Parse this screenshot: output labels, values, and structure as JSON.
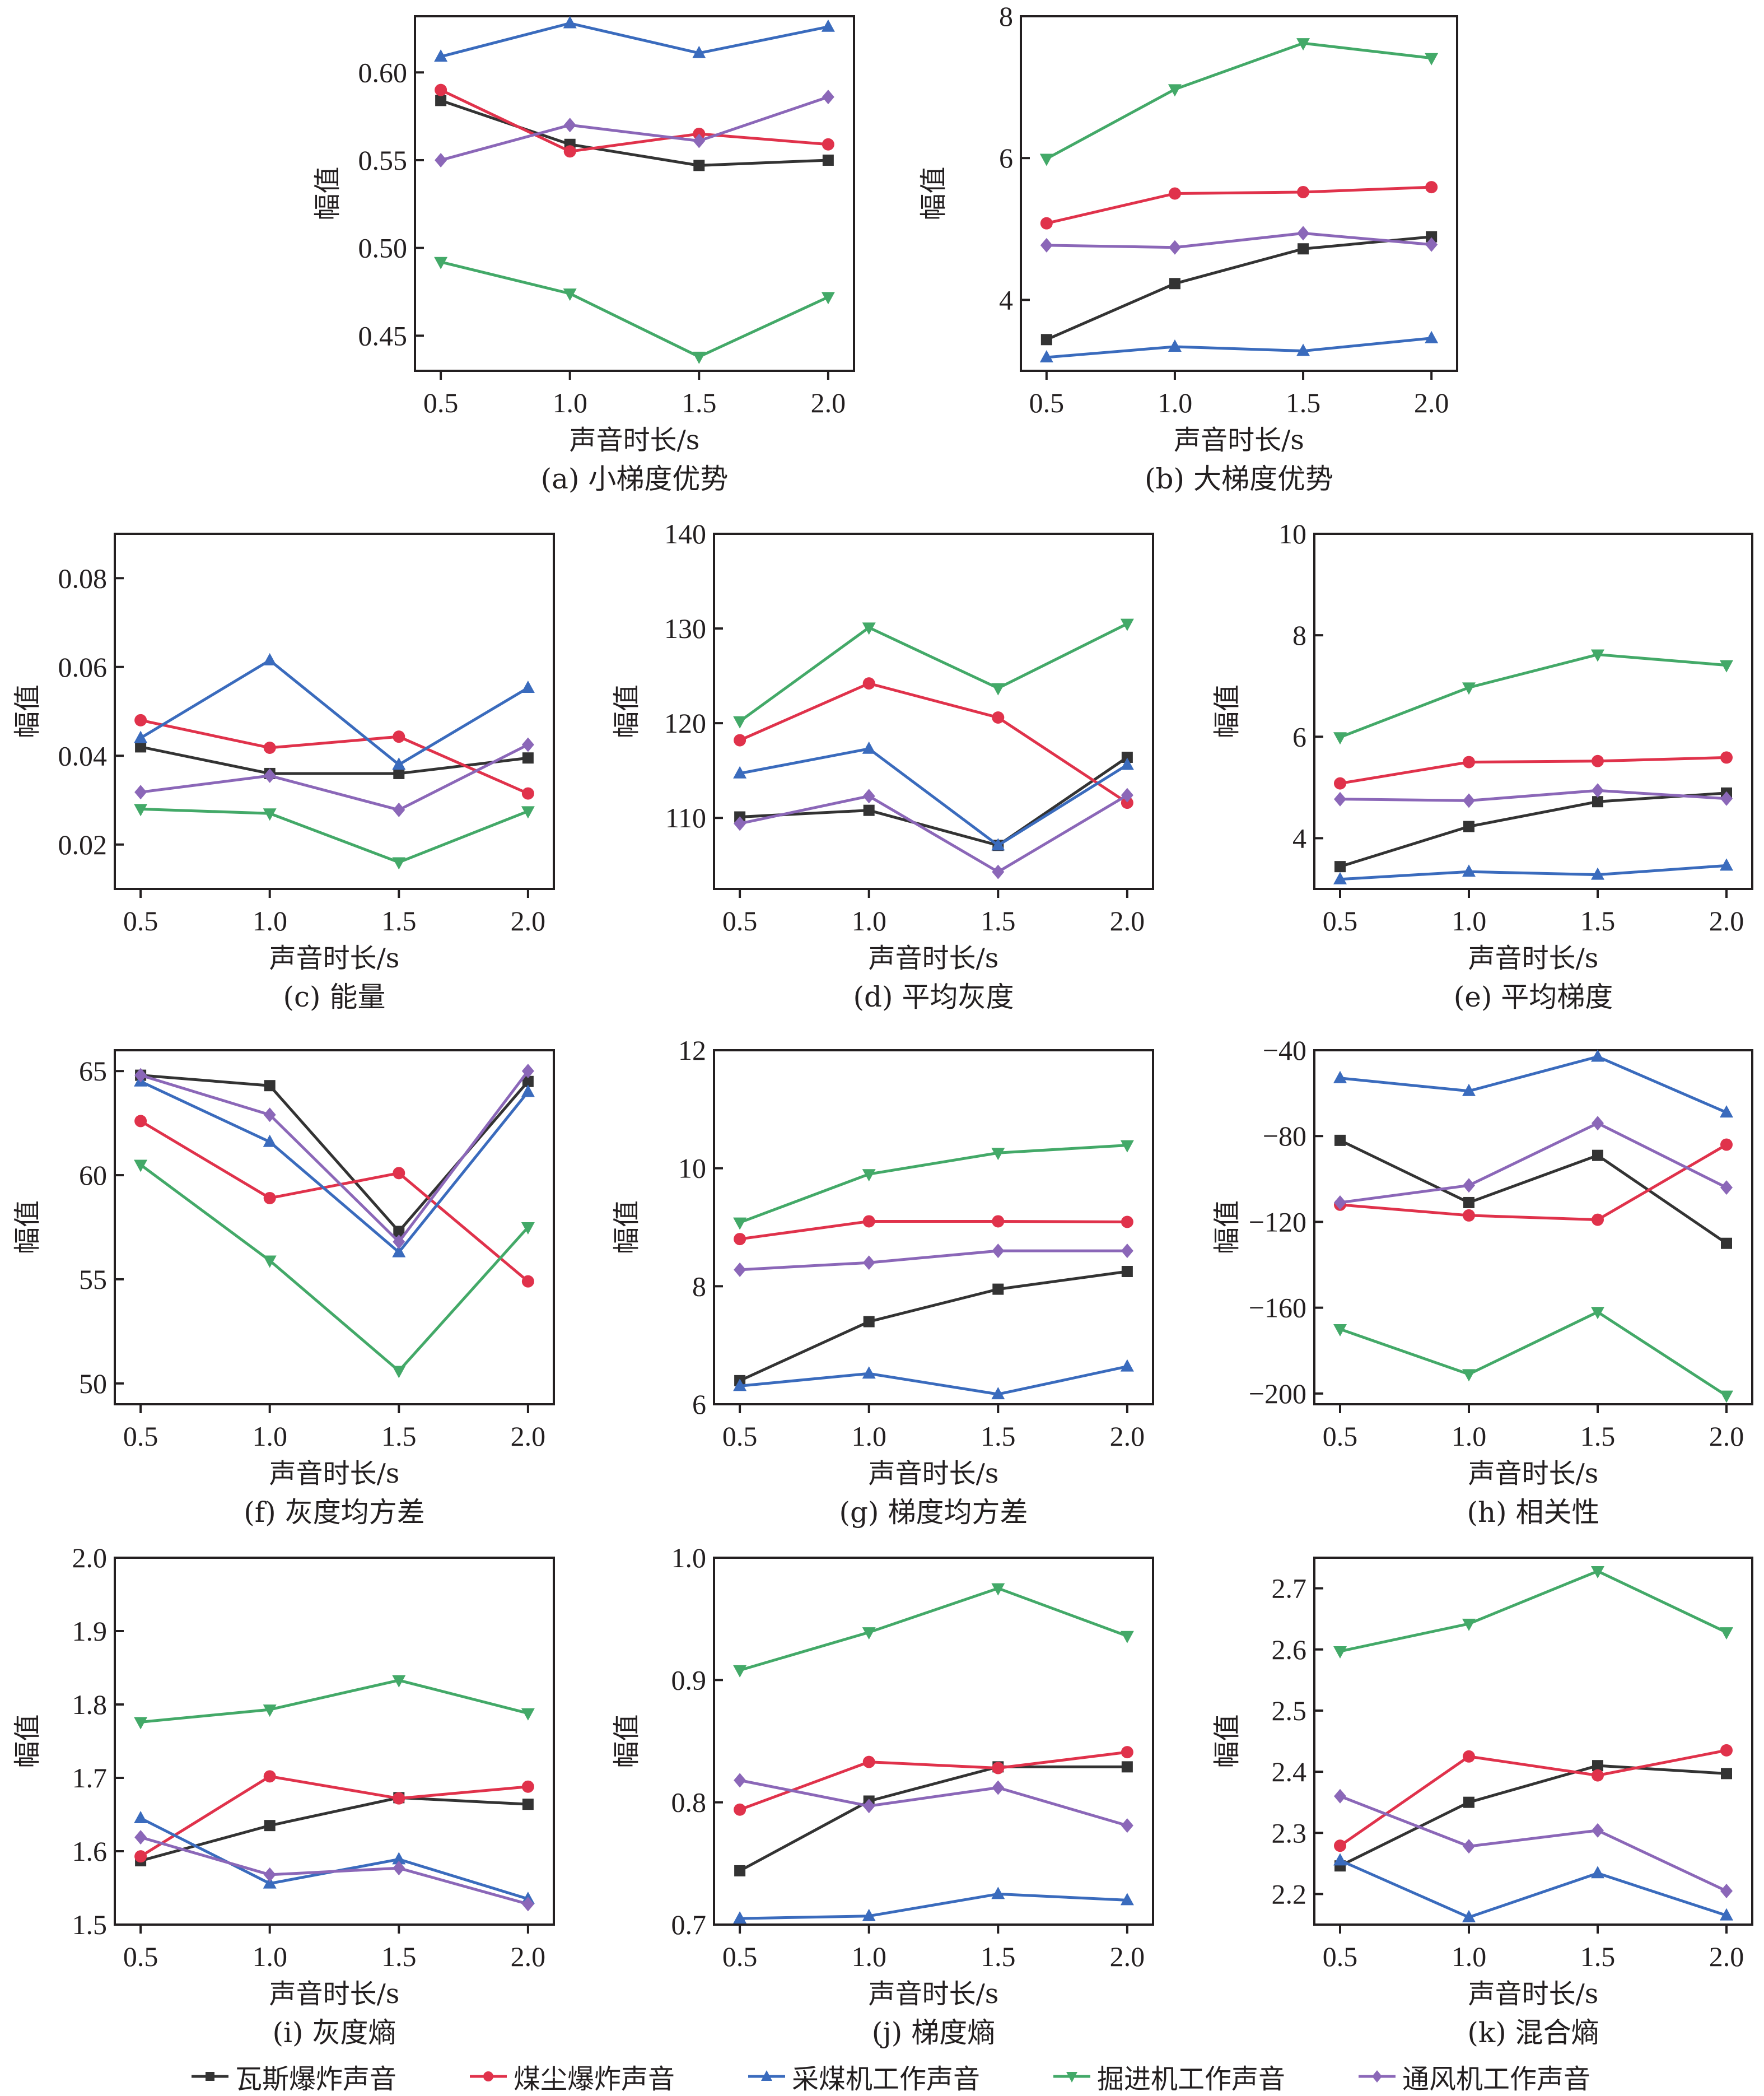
{
  "figure": {
    "x_axis_title": "声音时长/s",
    "y_axis_title": "幅值"
  },
  "legend": [
    {
      "name": "瓦斯爆炸声音",
      "color": "#333333",
      "marker": "square"
    },
    {
      "name": "煤尘爆炸声音",
      "color": "#e0324b",
      "marker": "circle"
    },
    {
      "name": "采煤机工作声音",
      "color": "#3a6bbd",
      "marker": "triangle-up"
    },
    {
      "name": "掘进机工作声音",
      "color": "#43a968",
      "marker": "triangle-down"
    },
    {
      "name": "通风机工作声音",
      "color": "#8b67b8",
      "marker": "diamond"
    }
  ],
  "chart_data": [
    {
      "type": "line",
      "id": "a",
      "title": "(a) 小梯度优势",
      "xlabel": "声音时长/s",
      "ylabel": "幅值",
      "x": [
        0.5,
        1.0,
        1.5,
        2.0
      ],
      "x_ticks": [
        "0.5",
        "1.0",
        "1.5",
        "2.0"
      ],
      "xlim": [
        0.4,
        2.1
      ],
      "ylim": [
        0.43,
        0.632
      ],
      "y_ticks": [
        0.45,
        0.5,
        0.55,
        0.6
      ],
      "y_tick_labels": [
        "0.45",
        "0.50",
        "0.55",
        "0.60"
      ],
      "grid": false,
      "series": [
        {
          "name": "瓦斯爆炸声音",
          "values": [
            0.584,
            0.559,
            0.547,
            0.55
          ]
        },
        {
          "name": "煤尘爆炸声音",
          "values": [
            0.59,
            0.555,
            0.565,
            0.559
          ]
        },
        {
          "name": "采煤机工作声音",
          "values": [
            0.609,
            0.628,
            0.611,
            0.626
          ]
        },
        {
          "name": "掘进机工作声音",
          "values": [
            0.492,
            0.474,
            0.438,
            0.472
          ]
        },
        {
          "name": "通风机工作声音",
          "values": [
            0.55,
            0.57,
            0.561,
            0.586
          ]
        }
      ]
    },
    {
      "type": "line",
      "id": "b",
      "title": "(b) 大梯度优势",
      "xlabel": "声音时长/s",
      "ylabel": "幅值",
      "x": [
        0.5,
        1.0,
        1.5,
        2.0
      ],
      "x_ticks": [
        "0.5",
        "1.0",
        "1.5",
        "2.0"
      ],
      "xlim": [
        0.4,
        2.1
      ],
      "ylim": [
        3.0,
        8.0
      ],
      "y_ticks": [
        4,
        6,
        8
      ],
      "y_tick_labels": [
        "4",
        "6",
        "8"
      ],
      "grid": false,
      "series": [
        {
          "name": "瓦斯爆炸声音",
          "values": [
            3.44,
            4.23,
            4.72,
            4.89
          ]
        },
        {
          "name": "煤尘爆炸声音",
          "values": [
            5.08,
            5.5,
            5.52,
            5.59
          ]
        },
        {
          "name": "采煤机工作声音",
          "values": [
            3.19,
            3.34,
            3.28,
            3.46
          ]
        },
        {
          "name": "掘进机工作声音",
          "values": [
            5.99,
            6.97,
            7.62,
            7.41
          ]
        },
        {
          "name": "通风机工作声音",
          "values": [
            4.77,
            4.74,
            4.94,
            4.78
          ]
        }
      ]
    },
    {
      "type": "line",
      "id": "c",
      "title": "(c) 能量",
      "xlabel": "声音时长/s",
      "ylabel": "幅值",
      "x": [
        0.5,
        1.0,
        1.5,
        2.0
      ],
      "x_ticks": [
        "0.5",
        "1.0",
        "1.5",
        "2.0"
      ],
      "xlim": [
        0.4,
        2.1
      ],
      "ylim": [
        0.01,
        0.09
      ],
      "y_ticks": [
        0.02,
        0.04,
        0.06,
        0.08
      ],
      "y_tick_labels": [
        "0.02",
        "0.04",
        "0.06",
        "0.08"
      ],
      "grid": false,
      "series": [
        {
          "name": "瓦斯爆炸声音",
          "values": [
            0.042,
            0.036,
            0.036,
            0.0395
          ]
        },
        {
          "name": "煤尘爆炸声音",
          "values": [
            0.048,
            0.0418,
            0.0443,
            0.0315
          ]
        },
        {
          "name": "采煤机工作声音",
          "values": [
            0.044,
            0.0615,
            0.038,
            0.0553
          ]
        },
        {
          "name": "掘进机工作声音",
          "values": [
            0.028,
            0.027,
            0.016,
            0.0275
          ]
        },
        {
          "name": "通风机工作声音",
          "values": [
            0.0318,
            0.0355,
            0.0278,
            0.0425
          ]
        }
      ]
    },
    {
      "type": "line",
      "id": "d",
      "title": "(d) 平均灰度",
      "xlabel": "声音时长/s",
      "ylabel": "幅值",
      "x": [
        0.5,
        1.0,
        1.5,
        2.0
      ],
      "x_ticks": [
        "0.5",
        "1.0",
        "1.5",
        "2.0"
      ],
      "xlim": [
        0.4,
        2.1
      ],
      "ylim": [
        102.5,
        140
      ],
      "y_ticks": [
        110,
        120,
        130,
        140
      ],
      "y_tick_labels": [
        "110",
        "120",
        "130",
        "140"
      ],
      "grid": false,
      "series": [
        {
          "name": "瓦斯爆炸声音",
          "values": [
            110.1,
            110.8,
            107.1,
            116.4
          ]
        },
        {
          "name": "煤尘爆炸声音",
          "values": [
            118.2,
            124.2,
            120.6,
            111.6
          ]
        },
        {
          "name": "采煤机工作声音",
          "values": [
            114.7,
            117.3,
            107.1,
            115.6
          ]
        },
        {
          "name": "掘进机工作声音",
          "values": [
            120.2,
            130.1,
            123.7,
            130.5
          ]
        },
        {
          "name": "通风机工作声音",
          "values": [
            109.4,
            112.3,
            104.3,
            112.4
          ]
        }
      ]
    },
    {
      "type": "line",
      "id": "e",
      "title": "(e) 平均梯度",
      "xlabel": "声音时长/s",
      "ylabel": "幅值",
      "x": [
        0.5,
        1.0,
        1.5,
        2.0
      ],
      "x_ticks": [
        "0.5",
        "1.0",
        "1.5",
        "2.0"
      ],
      "xlim": [
        0.4,
        2.1
      ],
      "ylim": [
        3.0,
        10.0
      ],
      "y_ticks": [
        4,
        6,
        8,
        10
      ],
      "y_tick_labels": [
        "4",
        "6",
        "8",
        "10"
      ],
      "grid": false,
      "series": [
        {
          "name": "瓦斯爆炸声音",
          "values": [
            3.44,
            4.23,
            4.72,
            4.89
          ]
        },
        {
          "name": "煤尘爆炸声音",
          "values": [
            5.08,
            5.5,
            5.52,
            5.59
          ]
        },
        {
          "name": "采煤机工作声音",
          "values": [
            3.19,
            3.34,
            3.28,
            3.46
          ]
        },
        {
          "name": "掘进机工作声音",
          "values": [
            5.99,
            6.97,
            7.62,
            7.41
          ]
        },
        {
          "name": "通风机工作声音",
          "values": [
            4.77,
            4.74,
            4.94,
            4.78
          ]
        }
      ]
    },
    {
      "type": "line",
      "id": "f",
      "title": "(f) 灰度均方差",
      "xlabel": "声音时长/s",
      "ylabel": "幅值",
      "x": [
        0.5,
        1.0,
        1.5,
        2.0
      ],
      "x_ticks": [
        "0.5",
        "1.0",
        "1.5",
        "2.0"
      ],
      "xlim": [
        0.4,
        2.1
      ],
      "ylim": [
        49,
        66
      ],
      "y_ticks": [
        50,
        55,
        60,
        65
      ],
      "y_tick_labels": [
        "50",
        "55",
        "60",
        "65"
      ],
      "grid": false,
      "series": [
        {
          "name": "瓦斯爆炸声音",
          "values": [
            64.8,
            64.3,
            57.3,
            64.5
          ]
        },
        {
          "name": "煤尘爆炸声音",
          "values": [
            62.6,
            58.9,
            60.1,
            54.9
          ]
        },
        {
          "name": "采煤机工作声音",
          "values": [
            64.5,
            61.6,
            56.3,
            64.0
          ]
        },
        {
          "name": "掘进机工作声音",
          "values": [
            60.5,
            55.9,
            50.6,
            57.5
          ]
        },
        {
          "name": "通风机工作声音",
          "values": [
            64.8,
            62.9,
            56.8,
            65.0
          ]
        }
      ]
    },
    {
      "type": "line",
      "id": "g",
      "title": "(g) 梯度均方差",
      "xlabel": "声音时长/s",
      "ylabel": "幅值",
      "x": [
        0.5,
        1.0,
        1.5,
        2.0
      ],
      "x_ticks": [
        "0.5",
        "1.0",
        "1.5",
        "2.0"
      ],
      "xlim": [
        0.4,
        2.1
      ],
      "ylim": [
        6,
        12
      ],
      "y_ticks": [
        6,
        8,
        10,
        12
      ],
      "y_tick_labels": [
        "6",
        "8",
        "10",
        "12"
      ],
      "grid": false,
      "series": [
        {
          "name": "瓦斯爆炸声音",
          "values": [
            6.4,
            7.4,
            7.95,
            8.25
          ]
        },
        {
          "name": "煤尘爆炸声音",
          "values": [
            8.8,
            9.1,
            9.1,
            9.09
          ]
        },
        {
          "name": "采煤机工作声音",
          "values": [
            6.31,
            6.52,
            6.17,
            6.64
          ]
        },
        {
          "name": "掘进机工作声音",
          "values": [
            9.08,
            9.9,
            10.26,
            10.39
          ]
        },
        {
          "name": "通风机工作声音",
          "values": [
            8.28,
            8.4,
            8.6,
            8.6
          ]
        }
      ]
    },
    {
      "type": "line",
      "id": "h",
      "title": "(h) 相关性",
      "xlabel": "声音时长/s",
      "ylabel": "幅值",
      "x": [
        0.5,
        1.0,
        1.5,
        2.0
      ],
      "x_ticks": [
        "0.5",
        "1.0",
        "1.5",
        "2.0"
      ],
      "xlim": [
        0.4,
        2.1
      ],
      "ylim": [
        -205,
        -40
      ],
      "y_ticks": [
        -200,
        -160,
        -120,
        -80,
        -40
      ],
      "y_tick_labels": [
        "−200",
        "−160",
        "−120",
        "−80",
        "−40"
      ],
      "grid": false,
      "series": [
        {
          "name": "瓦斯爆炸声音",
          "values": [
            -82,
            -111,
            -89,
            -130
          ]
        },
        {
          "name": "煤尘爆炸声音",
          "values": [
            -112,
            -117,
            -119,
            -84
          ]
        },
        {
          "name": "采煤机工作声音",
          "values": [
            -53,
            -59,
            -43,
            -69
          ]
        },
        {
          "name": "掘进机工作声音",
          "values": [
            -170,
            -191,
            -162,
            -201
          ]
        },
        {
          "name": "通风机工作声音",
          "values": [
            -111,
            -103,
            -74,
            -104
          ]
        }
      ]
    },
    {
      "type": "line",
      "id": "i",
      "title": "(i) 灰度熵",
      "xlabel": "声音时长/s",
      "ylabel": "幅值",
      "x": [
        0.5,
        1.0,
        1.5,
        2.0
      ],
      "x_ticks": [
        "0.5",
        "1.0",
        "1.5",
        "2.0"
      ],
      "xlim": [
        0.4,
        2.1
      ],
      "ylim": [
        1.5,
        2.0
      ],
      "y_ticks": [
        1.5,
        1.6,
        1.7,
        1.8,
        1.9,
        2.0
      ],
      "y_tick_labels": [
        "1.5",
        "1.6",
        "1.7",
        "1.8",
        "1.9",
        "2.0"
      ],
      "grid": false,
      "series": [
        {
          "name": "瓦斯爆炸声音",
          "values": [
            1.587,
            1.635,
            1.673,
            1.664
          ]
        },
        {
          "name": "煤尘爆炸声音",
          "values": [
            1.593,
            1.702,
            1.672,
            1.688
          ]
        },
        {
          "name": "采煤机工作声音",
          "values": [
            1.645,
            1.556,
            1.589,
            1.535
          ]
        },
        {
          "name": "掘进机工作声音",
          "values": [
            1.776,
            1.793,
            1.833,
            1.788
          ]
        },
        {
          "name": "通风机工作声音",
          "values": [
            1.619,
            1.568,
            1.577,
            1.528
          ]
        }
      ]
    },
    {
      "type": "line",
      "id": "j",
      "title": "(j) 梯度熵",
      "xlabel": "声音时长/s",
      "ylabel": "幅值",
      "x": [
        0.5,
        1.0,
        1.5,
        2.0
      ],
      "x_ticks": [
        "0.5",
        "1.0",
        "1.5",
        "2.0"
      ],
      "xlim": [
        0.4,
        2.1
      ],
      "ylim": [
        0.7,
        1.0
      ],
      "y_ticks": [
        0.7,
        0.8,
        0.9,
        1.0
      ],
      "y_tick_labels": [
        "0.7",
        "0.8",
        "0.9",
        "1.0"
      ],
      "grid": false,
      "series": [
        {
          "name": "瓦斯爆炸声音",
          "values": [
            0.744,
            0.801,
            0.829,
            0.829
          ]
        },
        {
          "name": "煤尘爆炸声音",
          "values": [
            0.794,
            0.833,
            0.828,
            0.841
          ]
        },
        {
          "name": "采煤机工作声音",
          "values": [
            0.705,
            0.707,
            0.725,
            0.72
          ]
        },
        {
          "name": "掘进机工作声音",
          "values": [
            0.908,
            0.939,
            0.975,
            0.936
          ]
        },
        {
          "name": "通风机工作声音",
          "values": [
            0.818,
            0.797,
            0.812,
            0.781
          ]
        }
      ]
    },
    {
      "type": "line",
      "id": "k",
      "title": "(k) 混合熵",
      "xlabel": "声音时长/s",
      "ylabel": "幅值",
      "x": [
        0.5,
        1.0,
        1.5,
        2.0
      ],
      "x_ticks": [
        "0.5",
        "1.0",
        "1.5",
        "2.0"
      ],
      "xlim": [
        0.4,
        2.1
      ],
      "ylim": [
        2.15,
        2.75
      ],
      "y_ticks": [
        2.2,
        2.3,
        2.4,
        2.5,
        2.6,
        2.7
      ],
      "y_tick_labels": [
        "2.2",
        "2.3",
        "2.4",
        "2.5",
        "2.6",
        "2.7"
      ],
      "grid": false,
      "series": [
        {
          "name": "瓦斯爆炸声音",
          "values": [
            2.246,
            2.35,
            2.41,
            2.397
          ]
        },
        {
          "name": "煤尘爆炸声音",
          "values": [
            2.279,
            2.425,
            2.394,
            2.435
          ]
        },
        {
          "name": "采煤机工作声音",
          "values": [
            2.255,
            2.162,
            2.234,
            2.165
          ]
        },
        {
          "name": "掘进机工作声音",
          "values": [
            2.597,
            2.642,
            2.728,
            2.628
          ]
        },
        {
          "name": "通风机工作声音",
          "values": [
            2.36,
            2.278,
            2.304,
            2.205
          ]
        }
      ]
    }
  ]
}
